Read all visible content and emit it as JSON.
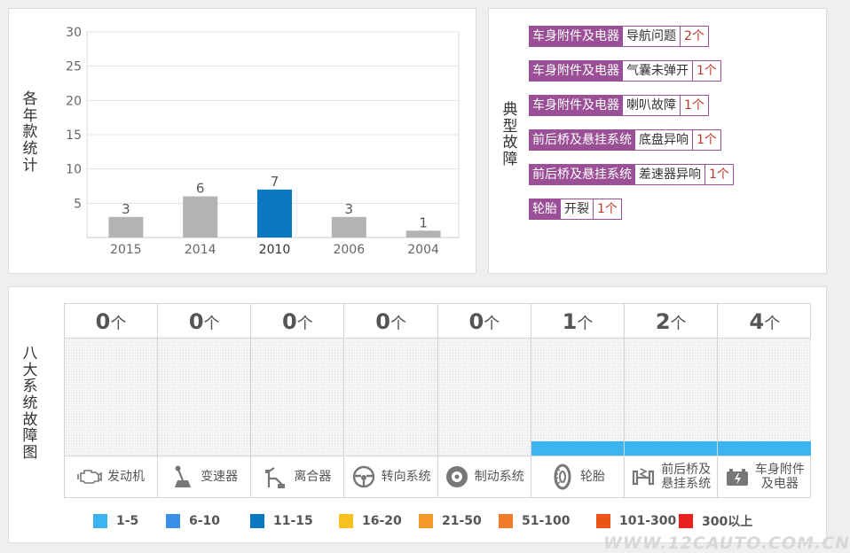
{
  "year_panel": {
    "label": "各年款统计"
  },
  "chart_data": {
    "type": "bar",
    "categories": [
      "2015",
      "2014",
      "2010",
      "2006",
      "2004"
    ],
    "values": [
      3,
      6,
      7,
      3,
      1
    ],
    "highlight_category": "2010",
    "ylim": [
      0,
      30
    ],
    "yticks": [
      5,
      10,
      15,
      20,
      25,
      30
    ],
    "grid": true,
    "colors": {
      "bar": "#b3b3b3",
      "highlight": "#0b79c1"
    }
  },
  "fault_panel": {
    "label": "典型故障",
    "items": [
      {
        "category": "车身附件及电器",
        "fault": "导航问题",
        "count": "2个"
      },
      {
        "category": "车身附件及电器",
        "fault": "气囊未弹开",
        "count": "1个"
      },
      {
        "category": "车身附件及电器",
        "fault": "喇叭故障",
        "count": "1个"
      },
      {
        "category": "前后桥及悬挂系统",
        "fault": "底盘异响",
        "count": "1个"
      },
      {
        "category": "前后桥及悬挂系统",
        "fault": "差速器异响",
        "count": "1个"
      },
      {
        "category": "轮胎",
        "fault": "开裂",
        "count": "1个"
      }
    ]
  },
  "system_panel": {
    "label": "八大系统故障图",
    "unit": "个",
    "systems": [
      {
        "name": "发动机",
        "count": 0,
        "icon": "engine-icon"
      },
      {
        "name": "变速器",
        "count": 0,
        "icon": "gear-shift-icon"
      },
      {
        "name": "离合器",
        "count": 0,
        "icon": "clutch-pedal-icon"
      },
      {
        "name": "转向系统",
        "count": 0,
        "icon": "steering-wheel-icon"
      },
      {
        "name": "制动系统",
        "count": 0,
        "icon": "brake-disc-icon"
      },
      {
        "name": "轮胎",
        "count": 1,
        "icon": "tire-icon"
      },
      {
        "name": "前后桥及悬挂系统",
        "count": 2,
        "icon": "suspension-icon",
        "label_lines": [
          "前后桥及",
          "悬挂系统"
        ]
      },
      {
        "name": "车身附件及电器",
        "count": 4,
        "icon": "battery-icon",
        "label_lines": [
          "车身附件",
          "及电器"
        ]
      }
    ],
    "bar_color": "#3db4f2",
    "legend": [
      {
        "label": "1-5",
        "color": "#3db4f2"
      },
      {
        "label": "6-10",
        "color": "#3a8ee6"
      },
      {
        "label": "11-15",
        "color": "#0b79c1"
      },
      {
        "label": "16-20",
        "color": "#f6c221"
      },
      {
        "label": "21-50",
        "color": "#f39a2b"
      },
      {
        "label": "51-100",
        "color": "#f07b28"
      },
      {
        "label": "101-300",
        "color": "#ec5416"
      },
      {
        "label": "300以上",
        "color": "#e8201f"
      }
    ]
  },
  "watermark": "WWW.12CAUTO.COM.CN"
}
